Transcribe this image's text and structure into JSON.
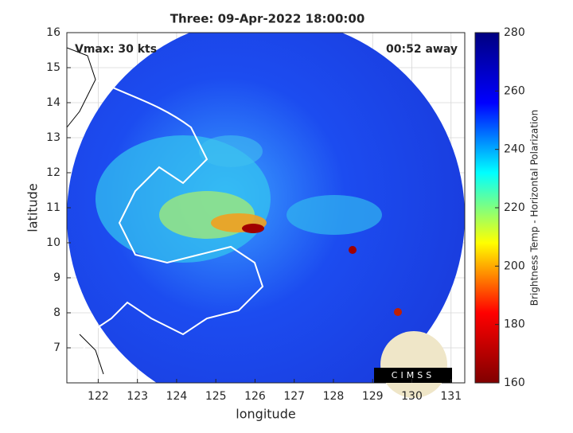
{
  "chart_data": {
    "type": "heatmap",
    "title": "Three: 09-Apr-2022 18:00:00",
    "x_label": "longitude",
    "y_label": "latitude",
    "annotations": [
      "Vmax: 30 kts",
      "00:52 away"
    ],
    "logo_text": "CIMSS",
    "xlim": [
      121.2,
      131.35
    ],
    "xticks": [
      122,
      123,
      124,
      125,
      126,
      127,
      128,
      129,
      130,
      131
    ],
    "ylim": [
      6,
      16
    ],
    "yticks": [
      7,
      8,
      9,
      10,
      11,
      12,
      13,
      14,
      15,
      16
    ],
    "grid": true,
    "colorbar": {
      "label": "Brightness Temp - Horizontal Polarization",
      "lim": [
        160,
        280
      ],
      "ticks": [
        160,
        180,
        200,
        220,
        240,
        260,
        280
      ],
      "colormap": [
        "#800000",
        "#ff0000",
        "#ffff00",
        "#00ffff",
        "#0000ff",
        "#000080"
      ]
    }
  }
}
